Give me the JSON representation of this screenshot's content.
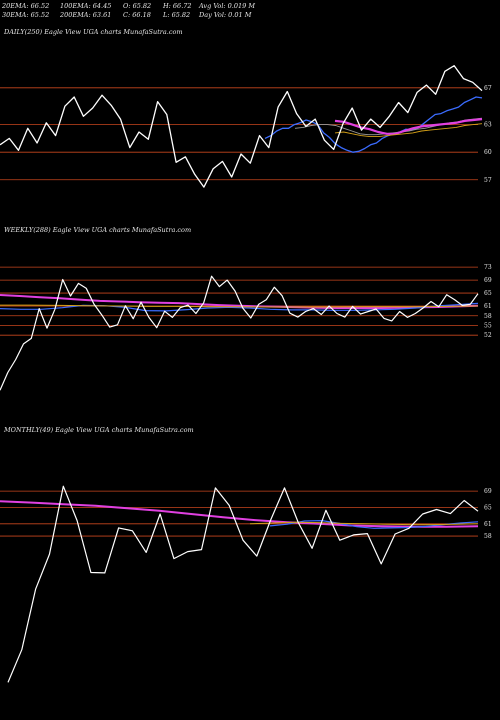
{
  "header": {
    "ema20": "20EMA: 66.52",
    "ema30": "30EMA: 65.52",
    "ema100": "100EMA: 64.45",
    "ema200": "200EMA: 63.61",
    "open": "O: 65.82",
    "close": "C: 66.18",
    "high": "H: 66.72",
    "low": "L: 65.82",
    "avg_vol": "Avg Vol: 0.019 M",
    "day_vol": "Day Vol: 0.01 M"
  },
  "colors": {
    "background": "#000000",
    "price_line": "#ffffff",
    "ref_line": "#c8461e",
    "ema_blue": "#3b6cff",
    "ema_magenta": "#e040e0",
    "ema_orange": "#d4a017",
    "ema_gray": "#9a9a9a",
    "text": "#e6e6e6"
  },
  "chart_data": [
    {
      "type": "line",
      "title": "DAILY(250) Eagle  View  UGA charts MunafaSutra.com",
      "ticks": [
        "67",
        "63",
        "60",
        "57"
      ],
      "tick_values": [
        67,
        63,
        60,
        57
      ],
      "ylim": [
        54.8,
        72.2
      ],
      "series": [
        {
          "values": [
            60.8,
            61.5,
            60.2,
            62.6,
            61.0,
            63.2,
            61.8,
            65.0,
            66.0,
            63.9,
            64.8,
            66.2,
            65.1,
            63.6,
            60.5,
            62.2,
            61.4,
            65.5,
            64.1,
            58.9,
            59.5,
            57.6,
            56.2,
            58.2,
            59.0,
            57.3,
            59.8,
            58.8,
            61.8,
            60.5,
            64.9,
            66.6,
            64.2,
            62.8,
            63.6,
            61.3,
            60.3,
            63.1,
            64.8,
            62.4,
            63.6,
            62.7,
            63.9,
            65.4,
            64.3,
            66.5,
            67.3,
            66.3,
            68.8,
            69.4,
            68.0,
            67.6,
            66.7
          ]
        },
        {
          "values": [
            61.5,
            61.8,
            62.3,
            62.6,
            62.6,
            63.0,
            63.2,
            63.5,
            63.3,
            63.0,
            62.1,
            61.6,
            60.9,
            60.5,
            60.2,
            60.0,
            60.1,
            60.4,
            60.8,
            61.0,
            61.5,
            61.8,
            62.0,
            62.2,
            62.5,
            62.4,
            62.6,
            63.1,
            63.6,
            64.1,
            64.2,
            64.5,
            64.7,
            64.9,
            65.4,
            65.7,
            66.0,
            65.9
          ]
        },
        {
          "values": [
            62.6,
            62.7,
            62.9,
            63.0,
            63.0,
            62.9,
            62.6,
            62.3,
            62.0,
            61.9,
            61.9,
            62.0,
            62.1,
            62.2,
            62.3,
            62.5,
            62.6,
            62.8,
            63.0,
            63.2,
            63.3,
            63.5,
            63.6,
            63.7
          ]
        },
        {
          "values": [
            63.4,
            63.3,
            63.0,
            62.7,
            62.5,
            62.2,
            62.0,
            62.0,
            62.3,
            62.6,
            62.8,
            62.9,
            63.0,
            63.1,
            63.2,
            63.4,
            63.5,
            63.6
          ]
        },
        {
          "values": [
            62.1,
            62.2,
            62.0,
            61.8,
            61.7,
            61.7,
            61.8,
            61.9,
            62.0,
            62.1,
            62.3,
            62.4,
            62.5,
            62.6,
            62.7,
            62.9,
            63.0,
            63.1
          ]
        }
      ]
    },
    {
      "type": "line",
      "title": "WEEKLY(288) Eagle  View  UGA charts MunafaSutra.com",
      "ticks": [
        "73",
        "69",
        "65",
        "61",
        "58",
        "55",
        "52"
      ],
      "tick_values": [
        73,
        69,
        65,
        61,
        58,
        55,
        52
      ],
      "ylim": [
        32,
        82
      ],
      "series": [
        {
          "values": [
            35.0,
            40.5,
            44.5,
            49.3,
            51.0,
            60.2,
            54.2,
            60.0,
            69.2,
            64.1,
            68.0,
            66.5,
            61.6,
            58.2,
            54.5,
            55.2,
            61.1,
            57.1,
            62.2,
            57.5,
            54.3,
            59.4,
            57.5,
            60.5,
            61.3,
            58.7,
            62.0,
            70.2,
            67.0,
            69.0,
            65.6,
            60.3,
            57.3,
            61.5,
            63.0,
            66.8,
            64.2,
            58.8,
            57.6,
            59.3,
            60.2,
            58.4,
            61.0,
            58.7,
            57.6,
            60.9,
            58.5,
            59.3,
            60.1,
            57.2,
            56.4,
            59.3,
            57.5,
            58.7,
            60.4,
            62.4,
            60.8,
            64.5,
            63.0,
            61.2,
            61.5,
            64.8
          ]
        },
        {
          "values": [
            64.4,
            64.1,
            63.7,
            63.4,
            63.0,
            62.6,
            62.4,
            62.2,
            62.0,
            61.9,
            61.6,
            61.3,
            61.1,
            60.9,
            60.8,
            60.6,
            60.5,
            60.4,
            60.4,
            60.4,
            60.5,
            60.6,
            60.7,
            60.9,
            61.1
          ]
        },
        {
          "values": [
            60.2,
            60.0,
            60.0,
            60.5,
            61.2,
            61.1,
            60.6,
            59.6,
            59.5,
            59.9,
            60.4,
            60.6,
            60.4,
            60.0,
            59.8,
            59.8,
            59.7,
            59.7,
            59.8,
            60.0,
            60.4,
            61.0,
            61.4,
            61.8
          ]
        },
        {
          "values": [
            61.3,
            61.3,
            61.2,
            61.1,
            61.0,
            60.9,
            60.9,
            60.8,
            60.8,
            60.7,
            60.7,
            60.7,
            60.8,
            60.8,
            60.8,
            60.9,
            61.0
          ]
        }
      ]
    },
    {
      "type": "line",
      "title": "MONTHLY(49) Eagle  View  UGA charts MunafaSutra.com",
      "ticks": [
        "69",
        "65",
        "61",
        "58"
      ],
      "tick_values": [
        69,
        65,
        61,
        58
      ],
      "ylim": [
        13,
        82
      ],
      "series": [
        {
          "values": [
            22.2,
            30.2,
            45.0,
            53.6,
            70.2,
            61.8,
            49.1,
            49.0,
            60.0,
            59.3,
            54.0,
            63.4,
            52.5,
            54.2,
            54.7,
            69.8,
            65.5,
            57.0,
            53.1,
            61.9,
            69.8,
            61.3,
            55.0,
            64.3,
            57.0,
            58.3,
            58.6,
            51.2,
            58.5,
            59.9,
            63.4,
            64.5,
            63.5,
            66.7,
            64.1
          ]
        },
        {
          "values": [
            66.5,
            66.2,
            65.8,
            65.4,
            64.8,
            64.2,
            63.4,
            62.6,
            61.9,
            61.4,
            61.0,
            60.6,
            60.4,
            60.3,
            60.3,
            60.4
          ]
        },
        {
          "values": [
            60.5,
            60.9,
            61.7,
            61.8,
            61.1,
            60.3,
            59.9,
            60.0,
            60.1,
            60.4,
            60.8,
            61.2,
            61.5
          ]
        },
        {
          "values": [
            61.0,
            61.2,
            61.4,
            61.3,
            61.1,
            61.0,
            60.9,
            60.8,
            60.8,
            60.9,
            61.0
          ]
        }
      ]
    }
  ]
}
